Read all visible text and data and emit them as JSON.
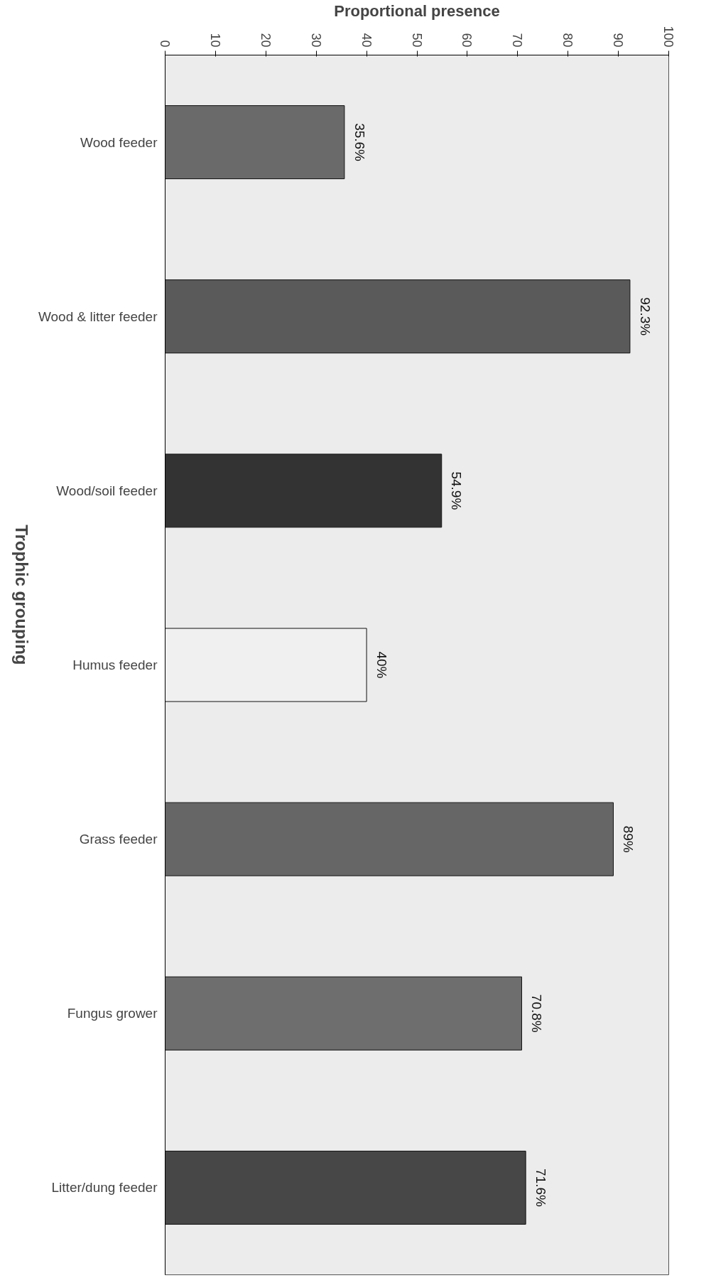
{
  "chart_data": {
    "type": "bar",
    "orientation": "horizontal",
    "xlabel": "Proportional presence",
    "ylabel": "Trophic grouping",
    "categories": [
      "Wood feeder",
      "Wood & litter feeder",
      "Wood/soil feeder",
      "Humus feeder",
      "Grass feeder",
      "Fungus grower",
      "Litter/dung feeder"
    ],
    "values": [
      35.6,
      92.3,
      54.9,
      40,
      89,
      70.8,
      71.6
    ],
    "value_labels": [
      "35.6%",
      "92.3%",
      "54.9%",
      "40%",
      "89%",
      "70.8%",
      "71.6%"
    ],
    "colors": [
      "#6a6a6a",
      "#5a5a5a",
      "#333333",
      "#f0f0f0",
      "#666666",
      "#6e6e6e",
      "#474747"
    ],
    "xlim": [
      0,
      100
    ],
    "xticks": [
      0,
      10,
      20,
      30,
      40,
      50,
      60,
      70,
      80,
      90,
      100
    ]
  }
}
